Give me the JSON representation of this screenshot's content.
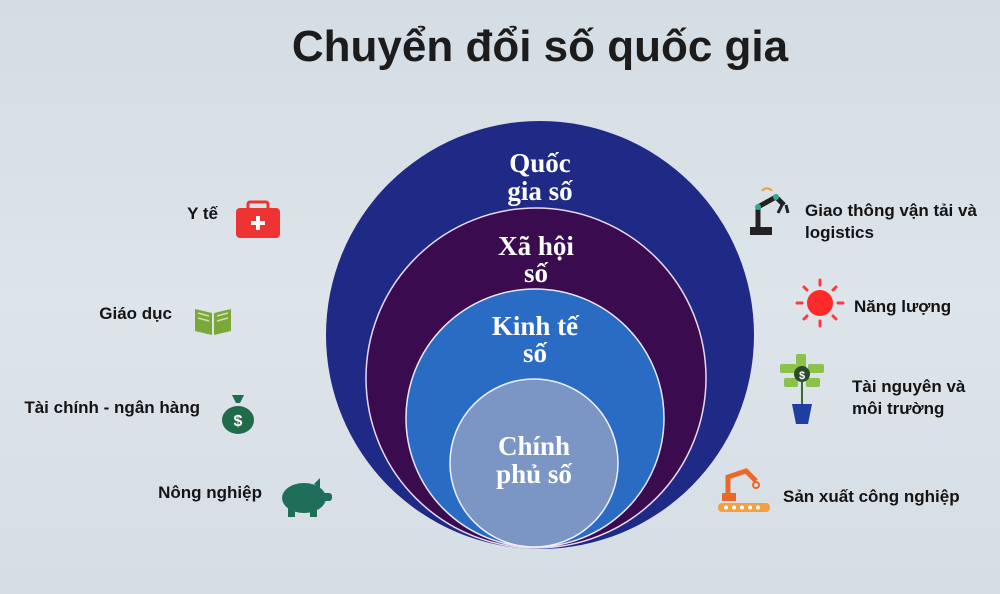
{
  "title": "Chuyển đổi số quốc gia",
  "rings": [
    {
      "line1": "Quốc",
      "line2": "gia số",
      "color": "#1f2a86"
    },
    {
      "line1": "Xã hội",
      "line2": "số",
      "color": "#3a0c4f"
    },
    {
      "line1": "Kinh tế",
      "line2": "số",
      "color": "#2a6cc4"
    },
    {
      "line1": "Chính",
      "line2": "phủ số",
      "color": "#7b96c4"
    }
  ],
  "left_sectors": [
    {
      "label": "Y tế",
      "icon": "first-aid-kit-icon"
    },
    {
      "label": "Giáo dục",
      "icon": "book-icon"
    },
    {
      "label": "Tài chính - ngân hàng",
      "icon": "money-bag-icon"
    },
    {
      "label": "Nông nghiệp",
      "icon": "pig-icon"
    }
  ],
  "right_sectors": [
    {
      "line1": "Giao thông vận tải và",
      "line2": "logistics",
      "icon": "robot-arm-icon"
    },
    {
      "line1": "Năng lượng",
      "line2": "",
      "icon": "sun-icon"
    },
    {
      "line1": "Tài nguyên và",
      "line2": "môi trường",
      "icon": "money-plant-icon"
    },
    {
      "line1": "Sản xuất công nghiệp",
      "line2": "",
      "icon": "factory-robot-icon"
    }
  ]
}
